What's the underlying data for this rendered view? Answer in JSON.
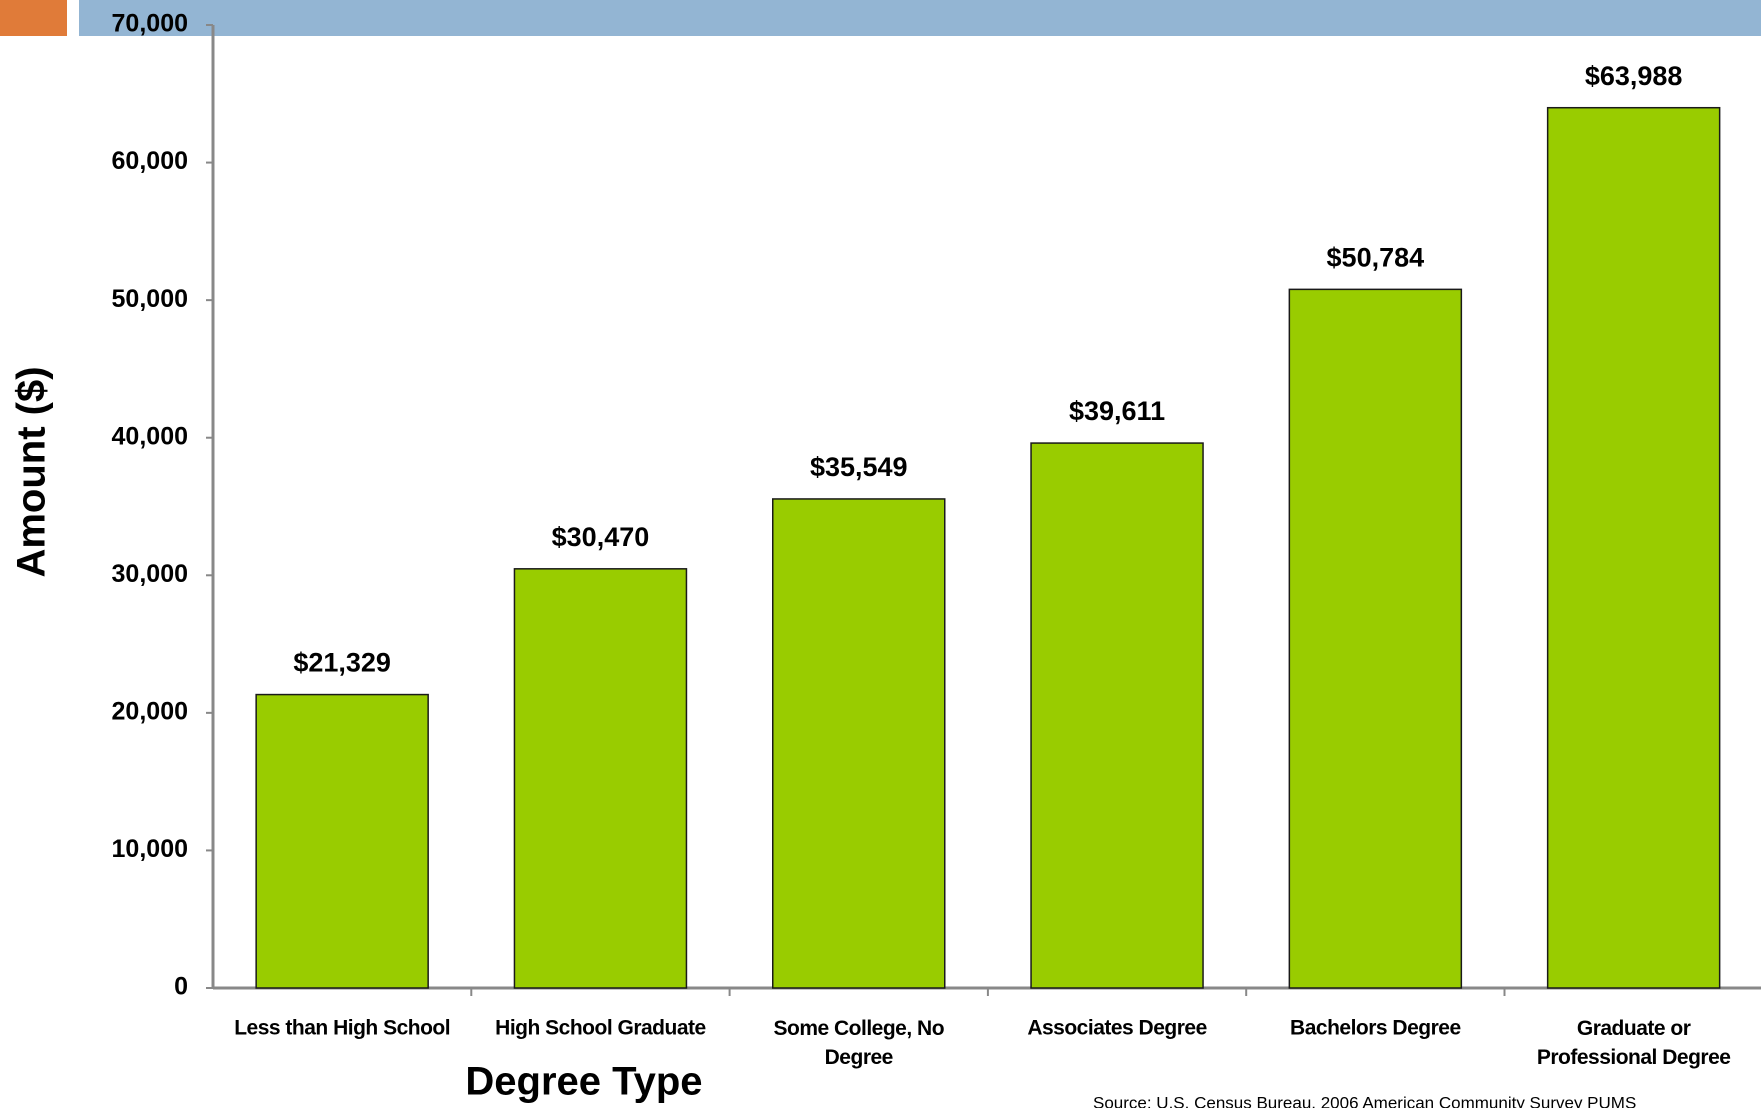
{
  "chart_data": {
    "type": "bar",
    "x_label": "Degree Type",
    "y_label": "Amount ($)",
    "source": "Source: U.S. Census Bureau, 2006 American Community Survey PUMS",
    "categories": [
      "Less than High School",
      "High School Graduate",
      "Some College, No Degree",
      "Associates Degree",
      "Bachelors Degree",
      "Graduate or Professional Degree"
    ],
    "values": [
      21329,
      30470,
      35549,
      39611,
      50784,
      63988
    ],
    "value_labels": [
      "$21,329",
      "$30,470",
      "$35,549",
      "$39,611",
      "$50,784",
      "$63,988"
    ],
    "color": "#99cc00",
    "ylim": [
      0,
      70000
    ],
    "yticks": [
      0,
      {
        "value": 10000,
        "label": "10,000"
      },
      {
        "value": 20000,
        "label": "20,000"
      },
      {
        "value": 30000,
        "label": "30,000"
      },
      {
        "value": 40000,
        "label": "40,000"
      },
      {
        "value": 50000,
        "label": "50,000"
      },
      {
        "value": 60000,
        "label": "60,000"
      },
      {
        "value": 70000,
        "label": "70,000"
      }
    ]
  }
}
